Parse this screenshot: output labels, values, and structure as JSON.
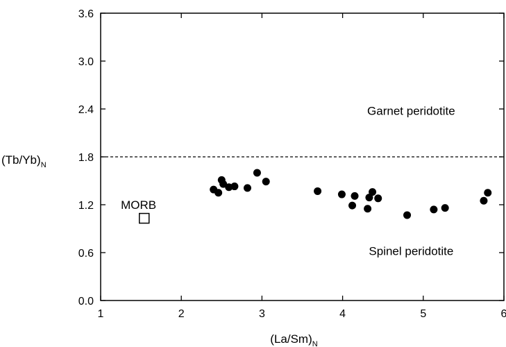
{
  "chart_data": {
    "type": "scatter",
    "title": "",
    "xlabel": "(La/Sm)",
    "xlabel_sub": "N",
    "ylabel": "(Tb/Yb)",
    "ylabel_sub": "N",
    "xlim": [
      1,
      6
    ],
    "ylim": [
      0,
      3.6
    ],
    "x_ticks": [
      "1",
      "2",
      "3",
      "4",
      "5",
      "6"
    ],
    "y_ticks": [
      "0.0",
      "0.6",
      "1.2",
      "1.8",
      "2.4",
      "3.0",
      "3.6"
    ],
    "grid": false,
    "series": [
      {
        "marker": "filled-circle",
        "x": [
          2.4,
          2.46,
          2.5,
          2.52,
          2.59,
          2.66,
          2.82,
          2.94,
          3.05,
          3.69,
          3.99,
          4.12,
          4.15,
          4.31,
          4.33,
          4.37,
          4.44,
          4.8,
          5.13,
          5.27,
          5.75,
          5.8
        ],
        "y": [
          1.39,
          1.35,
          1.51,
          1.46,
          1.42,
          1.43,
          1.41,
          1.6,
          1.49,
          1.37,
          1.33,
          1.19,
          1.31,
          1.15,
          1.29,
          1.36,
          1.28,
          1.07,
          1.14,
          1.16,
          1.25,
          1.35
        ]
      },
      {
        "marker": "open-square",
        "x": [
          1.54
        ],
        "y": [
          1.03
        ]
      }
    ],
    "reference_line": {
      "y": 1.8,
      "style": "dashed"
    },
    "annotations": [
      {
        "text": "Garnet peridotite",
        "x": 4.85,
        "y": 2.38
      },
      {
        "text": "Spinel peridotite",
        "x": 4.85,
        "y": 0.62
      },
      {
        "text": "MORB",
        "x": 1.47,
        "y": 1.2
      }
    ]
  }
}
